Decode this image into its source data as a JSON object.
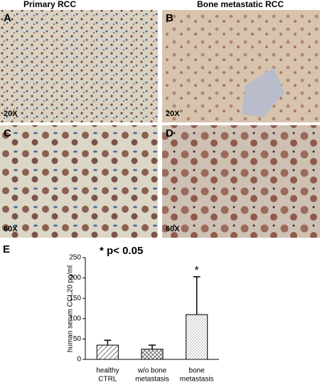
{
  "columns": [
    "Primary RCC",
    "Bone metastatic RCC"
  ],
  "panels": [
    {
      "letter": "A",
      "magnification": "20X"
    },
    {
      "letter": "B",
      "magnification": "20X"
    },
    {
      "letter": "C",
      "magnification": "60X"
    },
    {
      "letter": "D",
      "magnification": "60X"
    }
  ],
  "chart_data": {
    "type": "bar",
    "panel_letter": "E",
    "annotation": "* p< 0.05",
    "y_label": "human serum CCL20 pg/ml",
    "categories": [
      [
        "healthy",
        "CTRL"
      ],
      [
        "w/o bone",
        "metastasis"
      ],
      [
        "bone",
        "metastasis"
      ]
    ],
    "values": [
      35,
      25,
      110
    ],
    "errors": [
      12,
      10,
      93
    ],
    "bar_labels": [
      null,
      null,
      "*"
    ],
    "patterns": [
      "hatch",
      "crosshatch",
      "dots"
    ],
    "ylim": [
      0,
      250
    ],
    "yticks": [
      0,
      50,
      100,
      150,
      200,
      250
    ]
  }
}
